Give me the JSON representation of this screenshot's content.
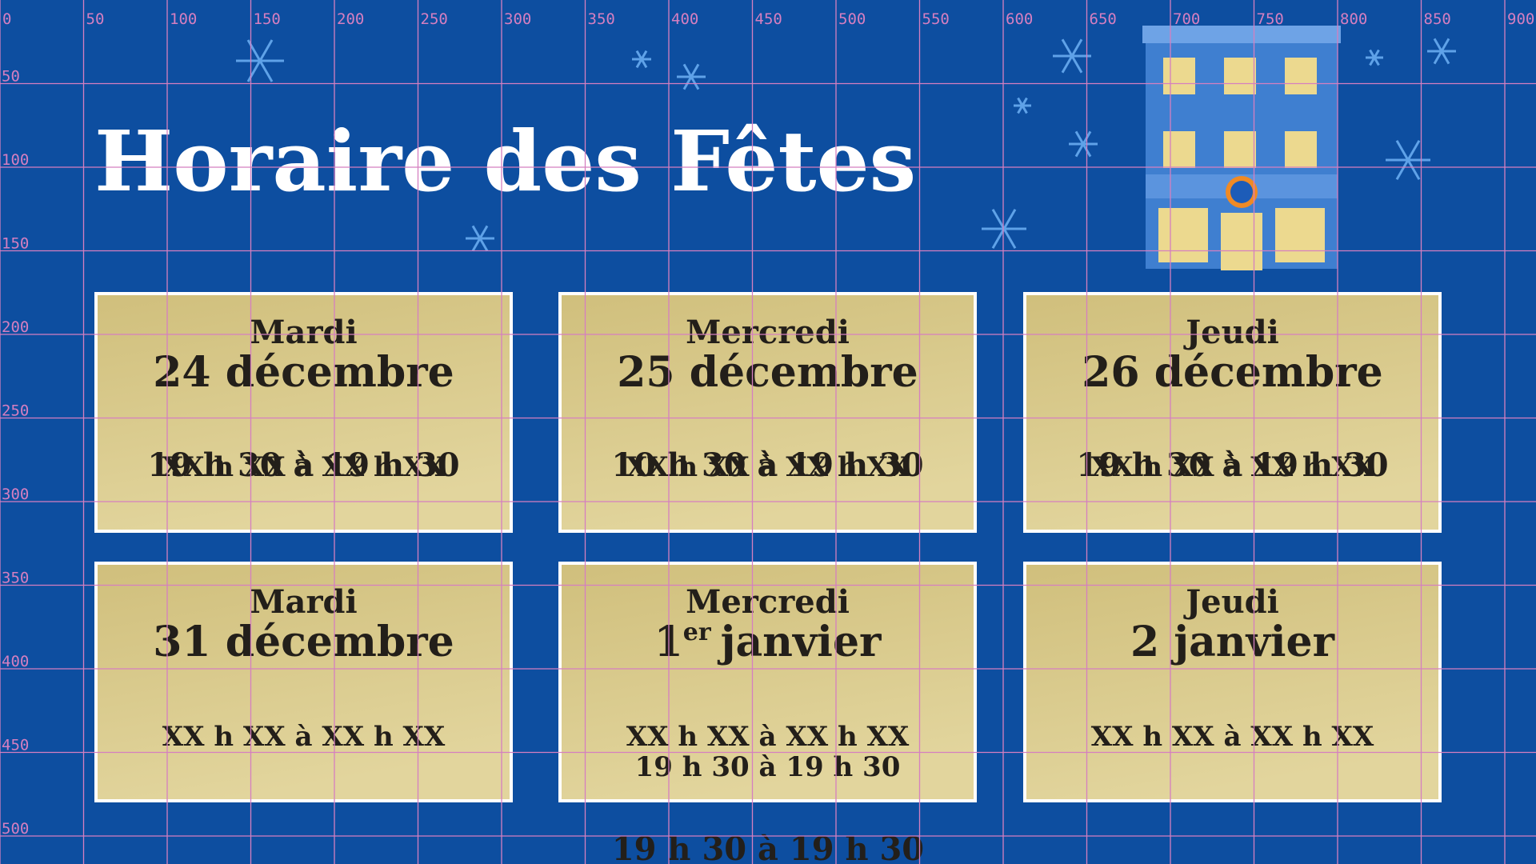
{
  "title": "Horaire des Fêtes",
  "grid": {
    "x_labels": [
      0,
      50,
      100,
      150,
      200,
      250,
      300,
      350,
      400,
      450,
      500,
      550,
      600,
      650,
      700,
      750,
      800,
      850,
      900
    ],
    "y_labels": [
      50,
      100,
      150,
      200,
      250,
      300,
      350,
      400,
      450,
      500
    ]
  },
  "cards": [
    {
      "day": "Mardi",
      "date": "24 décembre",
      "times": [
        "19 h 30 à 19 h 30",
        "XX h XX à XX h XX"
      ]
    },
    {
      "day": "Mercredi",
      "date": "25 décembre",
      "times": [
        "10 h 30 à 19 h 30",
        "XX h XX à XX h XX"
      ]
    },
    {
      "day": "Jeudi",
      "date": "26 décembre",
      "times": [
        "19 h 30 à 19 h 30",
        "XX h XX à XX h XX"
      ]
    },
    {
      "day": "Mardi",
      "date": "31 décembre",
      "times": [
        "XX h XX à XX h XX"
      ]
    },
    {
      "day": "Mercredi",
      "date_number": "1",
      "date_sup": "er",
      "date_rest": "janvier",
      "times": [
        "XX h XX à XX h XX",
        "19 h 30 à 19 h 30"
      ]
    },
    {
      "day": "Jeudi",
      "date": "2 janvier",
      "times": [
        "XX h XX à XX h XX"
      ]
    }
  ],
  "overflow_time": "19 h 30 à 19 h 30"
}
